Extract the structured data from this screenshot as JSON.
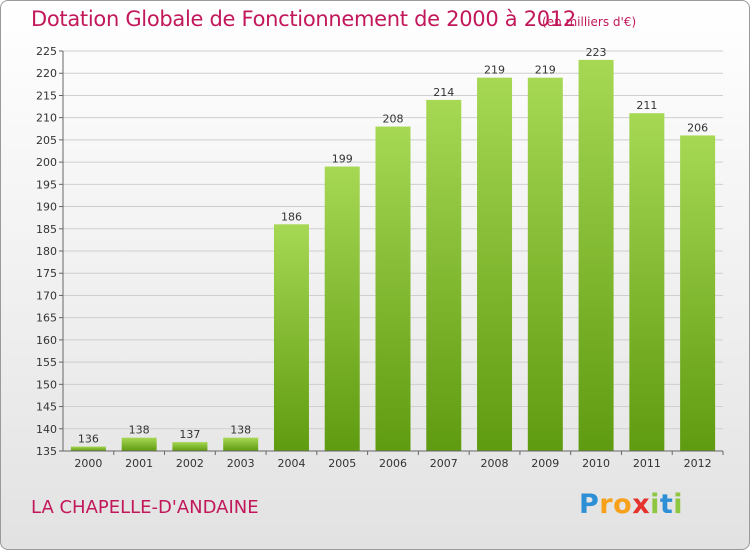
{
  "header": {
    "title": "Dotation Globale de Fonctionnement de 2000 à 2012",
    "unit": "(en milliers d'€)"
  },
  "footer": {
    "commune": "LA CHAPELLE-D'ANDAINE",
    "logo": [
      {
        "ch": "P",
        "color": "#2d8fd5"
      },
      {
        "ch": "r",
        "color": "#f7a11a"
      },
      {
        "ch": "o",
        "color": "#f7a11a"
      },
      {
        "ch": "x",
        "color": "#e5322d"
      },
      {
        "ch": "i",
        "color": "#8dc63f"
      },
      {
        "ch": "t",
        "color": "#2d8fd5"
      },
      {
        "ch": "i",
        "color": "#8dc63f"
      }
    ]
  },
  "chart_data": {
    "type": "bar",
    "categories": [
      "2000",
      "2001",
      "2002",
      "2003",
      "2004",
      "2005",
      "2006",
      "2007",
      "2008",
      "2009",
      "2010",
      "2011",
      "2012"
    ],
    "values": [
      136,
      138,
      137,
      138,
      186,
      199,
      208,
      214,
      219,
      219,
      223,
      211,
      206
    ],
    "ylim": [
      135,
      225
    ],
    "yticks": [
      135,
      140,
      145,
      150,
      155,
      160,
      165,
      170,
      175,
      180,
      185,
      190,
      195,
      200,
      205,
      210,
      215,
      220,
      225
    ],
    "grid": true,
    "colors": {
      "bar_light": "#a6d854",
      "bar_dark": "#5f9b10",
      "grid": "#cfcfcf",
      "axis": "#666666"
    }
  }
}
